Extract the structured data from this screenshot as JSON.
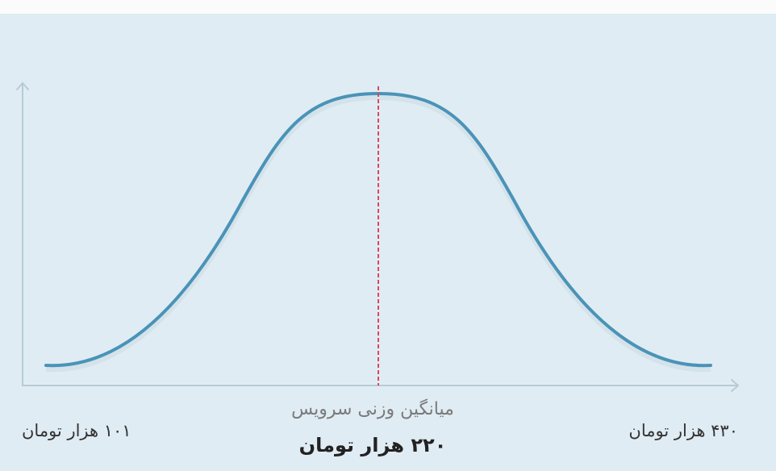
{
  "min_label": "۱۰۱ هزار تومان",
  "max_label": "۴۳۰ هزار تومان",
  "mean_caption": "میانگین وزنی سرویس",
  "mean_value": "۲۲۰ هزار تومان"
}
